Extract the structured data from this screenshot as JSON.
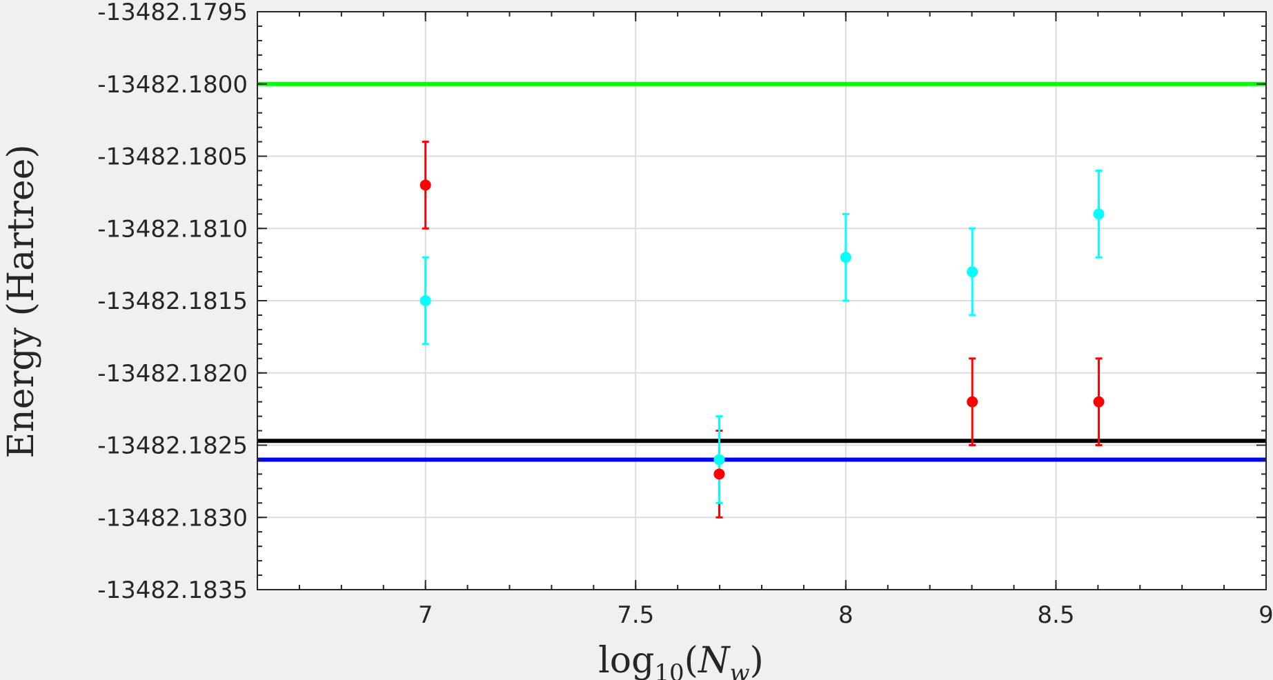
{
  "chart_data": {
    "type": "scatter",
    "title": "",
    "xlabel": {
      "base": "log",
      "sub": "10",
      "arg_open": "(",
      "var": "N",
      "var_sub": "w",
      "arg_close": ")"
    },
    "ylabel": "Energy (Hartree)",
    "xlim": [
      6.6,
      9
    ],
    "ylim": [
      -13482.1835,
      -13482.1795
    ],
    "x_ticks": [
      7,
      7.5,
      8,
      8.5,
      9
    ],
    "x_tick_labels": [
      "7",
      "7.5",
      "8",
      "8.5",
      "9"
    ],
    "y_ticks": [
      -13482.1795,
      -13482.18,
      -13482.1805,
      -13482.181,
      -13482.1815,
      -13482.182,
      -13482.1825,
      -13482.183,
      -13482.1835
    ],
    "y_tick_labels": [
      "-13482.1795",
      "-13482.1800",
      "-13482.1805",
      "-13482.1810",
      "-13482.1815",
      "-13482.1820",
      "-13482.1825",
      "-13482.1830",
      "-13482.1835"
    ],
    "grid": true,
    "series": [
      {
        "color": "#ff0000",
        "points": [
          {
            "x": 7.0,
            "y": -13482.1807,
            "err": 0.0003
          },
          {
            "x": 7.699,
            "y": -13482.1827,
            "err": 0.0003
          },
          {
            "x": 8.301,
            "y": -13482.1822,
            "err": 0.0003
          },
          {
            "x": 8.602,
            "y": -13482.1822,
            "err": 0.0003
          }
        ]
      },
      {
        "color": "#00ffff",
        "points": [
          {
            "x": 7.0,
            "y": -13482.1815,
            "err": 0.0003
          },
          {
            "x": 7.699,
            "y": -13482.1826,
            "err": 0.0003
          },
          {
            "x": 8.0,
            "y": -13482.1812,
            "err": 0.0003
          },
          {
            "x": 8.301,
            "y": -13482.1813,
            "err": 0.0003
          },
          {
            "x": 8.602,
            "y": -13482.1809,
            "err": 0.0003
          }
        ]
      }
    ],
    "reference_lines": [
      {
        "color": "#00ff00",
        "y": -13482.18
      },
      {
        "color": "#000000",
        "y": -13482.18247
      },
      {
        "color": "#0000ff",
        "y": -13482.1826
      }
    ]
  }
}
